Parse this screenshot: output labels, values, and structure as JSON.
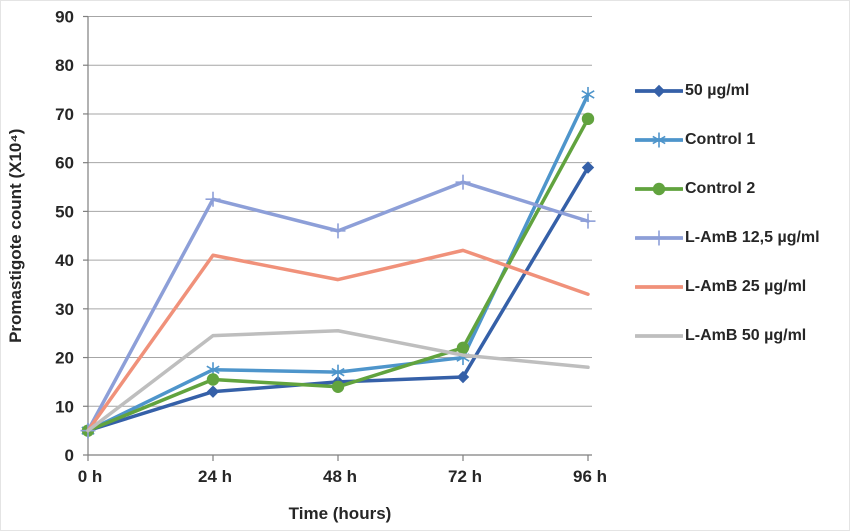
{
  "chart_data": {
    "type": "line",
    "title": "",
    "xlabel": "Time (hours)",
    "ylabel": "Promastigote count (X10⁴)",
    "categories": [
      "0 h",
      "24 h",
      "48 h",
      "72 h",
      "96 h"
    ],
    "ylim": [
      0,
      90
    ],
    "y_tick_step": 10,
    "grid": "horizontal",
    "legend_position": "right",
    "colors": {
      "grid": "#A6A6A6",
      "axis": "#7F7F7F",
      "text": "#262626",
      "background": "#FFFFFF"
    },
    "series": [
      {
        "name": "50 µg/ml",
        "color": "#3560A8",
        "marker": "diamond",
        "values": [
          5,
          13,
          15,
          16,
          59
        ]
      },
      {
        "name": "Control 1",
        "color": "#4E95CB",
        "marker": "asterisk",
        "values": [
          5,
          17.5,
          17,
          20,
          74
        ]
      },
      {
        "name": "Control 2",
        "color": "#61A33E",
        "marker": "circle",
        "values": [
          5,
          15.5,
          14,
          22,
          69
        ]
      },
      {
        "name": "L-AmB 12,5 µg/ml",
        "color": "#8D9FD8",
        "marker": "plus",
        "values": [
          5,
          52.5,
          46,
          56,
          48
        ]
      },
      {
        "name": "L-AmB 25 µg/ml",
        "color": "#F0917A",
        "marker": "none",
        "values": [
          5,
          41,
          36,
          42,
          33
        ]
      },
      {
        "name": "L-AmB 50 µg/ml",
        "color": "#BEBEBE",
        "marker": "none",
        "values": [
          5,
          24.5,
          25.5,
          20.5,
          18
        ]
      }
    ]
  }
}
